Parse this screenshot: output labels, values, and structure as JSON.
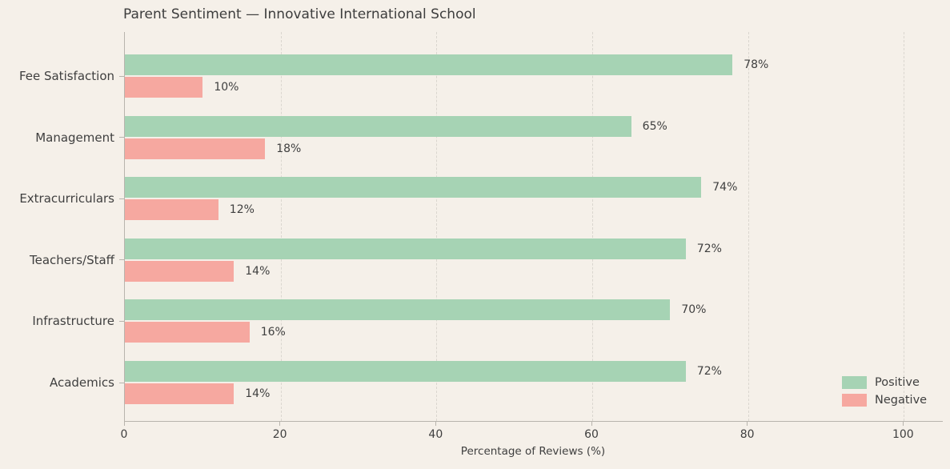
{
  "title": "Parent Sentiment — Innovative International School",
  "axis": {
    "xlabel": "Percentage of Reviews (%)"
  },
  "legend": {
    "items": [
      {
        "label": "Positive",
        "color": "#a6d3b4"
      },
      {
        "label": "Negative",
        "color": "#f6a8a0"
      }
    ]
  },
  "colors": {
    "background": "#f5f0e9",
    "positive": "#a6d3b4",
    "negative": "#f6a8a0",
    "text": "#3f3f3f",
    "grid": "#dad6cf",
    "spine": "#b8b4ad"
  },
  "chart_data": {
    "type": "bar",
    "orientation": "horizontal",
    "title": "Parent Sentiment — Innovative International School",
    "xlabel": "Percentage of Reviews (%)",
    "categories": [
      "Fee Satisfaction",
      "Management",
      "Extracurriculars",
      "Teachers/Staff",
      "Infrastructure",
      "Academics"
    ],
    "series": [
      {
        "name": "Positive",
        "color": "#a6d3b4",
        "values": [
          78,
          65,
          74,
          72,
          70,
          72
        ]
      },
      {
        "name": "Negative",
        "color": "#f6a8a0",
        "values": [
          10,
          18,
          12,
          14,
          16,
          14
        ]
      }
    ],
    "data_labels": {
      "Positive": [
        "78%",
        "65%",
        "74%",
        "72%",
        "70%",
        "72%"
      ],
      "Negative": [
        "10%",
        "18%",
        "12%",
        "14%",
        "16%",
        "14%"
      ]
    },
    "x_ticks": [
      0,
      20,
      40,
      60,
      80,
      100
    ],
    "xlim": [
      0,
      105
    ],
    "grid": "vertical-dashed",
    "legend_position": "lower-right"
  }
}
